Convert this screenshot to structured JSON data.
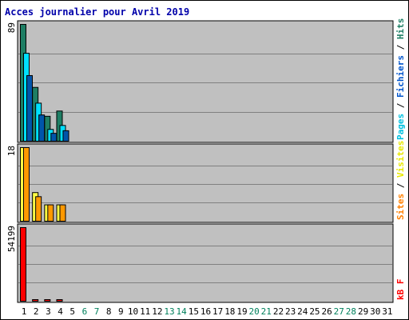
{
  "chart_data": [
    {
      "type": "bar",
      "title": "Acces journalier pour Avril 2019",
      "x": [
        "1",
        "2",
        "3",
        "4",
        "5",
        "6",
        "7",
        "8",
        "9",
        "10",
        "11",
        "12",
        "13",
        "14",
        "15",
        "16",
        "17",
        "18",
        "19",
        "20",
        "21",
        "22",
        "23",
        "24",
        "25",
        "26",
        "27",
        "28",
        "29",
        "30",
        "31"
      ],
      "weekend_days": [
        "6",
        "7",
        "13",
        "14",
        "20",
        "21",
        "27",
        "28"
      ],
      "panel": "hits-files-pages",
      "max_label": "89",
      "ylim": [
        0,
        89
      ],
      "legend": [
        "Pages",
        "Fichiers",
        "Hits"
      ],
      "series": [
        {
          "name": "Hits",
          "color": "#1e7e64",
          "values": [
            89,
            41,
            19,
            23,
            0,
            0,
            0,
            0,
            0,
            0,
            0,
            0,
            0,
            0,
            0,
            0,
            0,
            0,
            0,
            0,
            0,
            0,
            0,
            0,
            0,
            0,
            0,
            0,
            0,
            0,
            0
          ]
        },
        {
          "name": "Fichiers",
          "color": "#00e0ff",
          "values": [
            67,
            29,
            9,
            12,
            0,
            0,
            0,
            0,
            0,
            0,
            0,
            0,
            0,
            0,
            0,
            0,
            0,
            0,
            0,
            0,
            0,
            0,
            0,
            0,
            0,
            0,
            0,
            0,
            0,
            0,
            0
          ]
        },
        {
          "name": "Pages",
          "color": "#0055aa",
          "values": [
            50,
            20,
            6,
            8,
            0,
            0,
            0,
            0,
            0,
            0,
            0,
            0,
            0,
            0,
            0,
            0,
            0,
            0,
            0,
            0,
            0,
            0,
            0,
            0,
            0,
            0,
            0,
            0,
            0,
            0,
            0
          ]
        }
      ]
    },
    {
      "type": "bar",
      "panel": "visits-sites",
      "max_label": "18",
      "ylim": [
        0,
        18
      ],
      "legend": [
        "Sites",
        "Visites"
      ],
      "series": [
        {
          "name": "Visites",
          "color": "#ffff44",
          "values": [
            18,
            7,
            4,
            4,
            0,
            0,
            0,
            0,
            0,
            0,
            0,
            0,
            0,
            0,
            0,
            0,
            0,
            0,
            0,
            0,
            0,
            0,
            0,
            0,
            0,
            0,
            0,
            0,
            0,
            0,
            0
          ]
        },
        {
          "name": "Sites",
          "color": "#ff9900",
          "values": [
            18,
            6,
            4,
            4,
            0,
            0,
            0,
            0,
            0,
            0,
            0,
            0,
            0,
            0,
            0,
            0,
            0,
            0,
            0,
            0,
            0,
            0,
            0,
            0,
            0,
            0,
            0,
            0,
            0,
            0,
            0
          ]
        }
      ]
    },
    {
      "type": "bar",
      "panel": "kbytes",
      "max_label": "54199",
      "ylim": [
        0,
        54199
      ],
      "legend": [
        "kB F"
      ],
      "series": [
        {
          "name": "kB F",
          "color": "#ff0000",
          "values": [
            54199,
            500,
            500,
            500,
            0,
            0,
            0,
            0,
            0,
            0,
            0,
            0,
            0,
            0,
            0,
            0,
            0,
            0,
            0,
            0,
            0,
            0,
            0,
            0,
            0,
            0,
            0,
            0,
            0,
            0,
            0
          ]
        }
      ]
    }
  ],
  "colors": {
    "title": "#0000aa",
    "panel_bg": "#c0c0c0",
    "frame": "#000000",
    "weekday_label": "#000000",
    "weekend_label": "#00805c",
    "legend_pages": "#00c0e0",
    "legend_fichiers": "#0055cc",
    "legend_hits": "#1e7e64",
    "legend_sites": "#ff8000",
    "legend_visites": "#e8e800",
    "legend_kb": "#ff0000"
  }
}
